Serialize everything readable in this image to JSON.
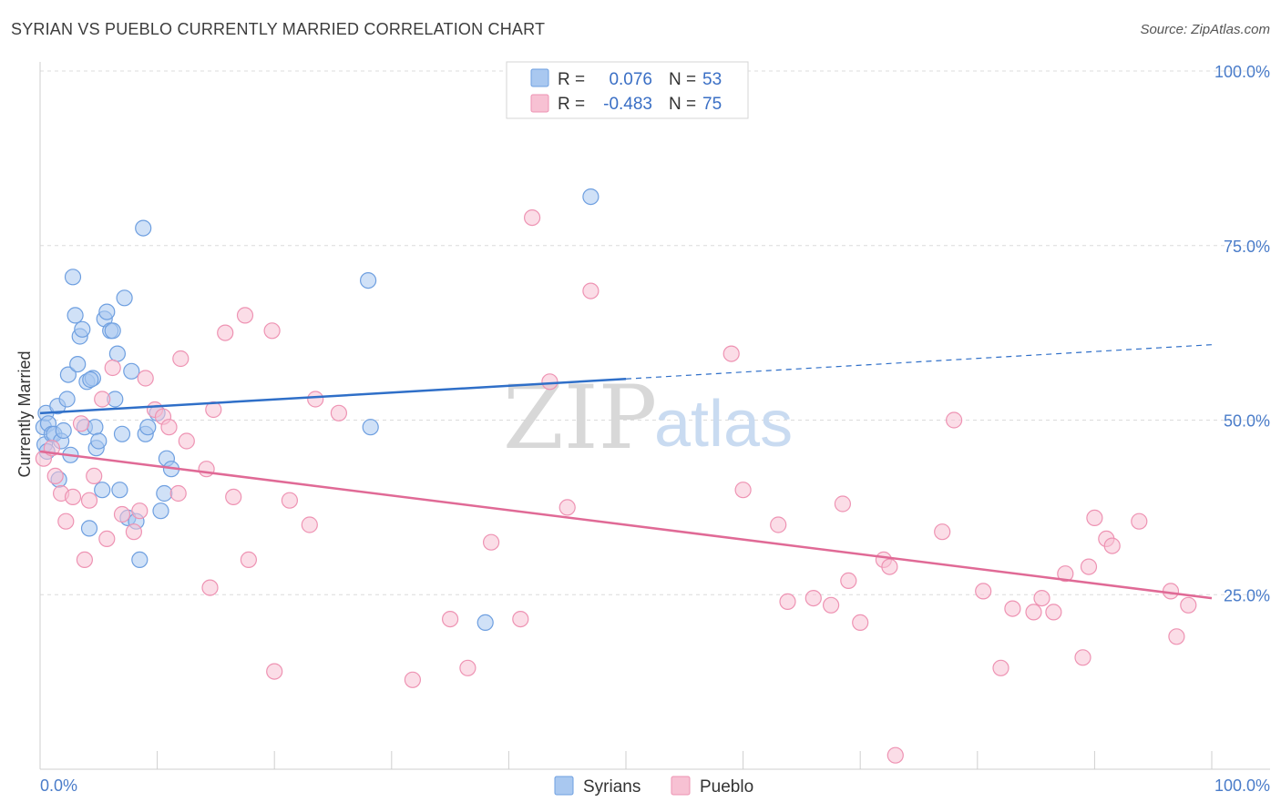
{
  "title": "SYRIAN VS PUEBLO CURRENTLY MARRIED CORRELATION CHART",
  "source": "Source: ZipAtlas.com",
  "watermark": {
    "zip": "ZIP",
    "atlas": "atlas"
  },
  "legend_top": {
    "rows": [
      {
        "r_label": "R =",
        "r_value": "0.076",
        "n_label": "N =",
        "n_value": "53",
        "color": "#a9c8f0",
        "stroke": "#6e9fe0"
      },
      {
        "r_label": "R =",
        "r_value": "-0.483",
        "n_label": "N =",
        "n_value": "75",
        "color": "#f7c1d3",
        "stroke": "#ee93b3"
      }
    ]
  },
  "legend_bottom": [
    {
      "label": "Syrians",
      "color": "#a9c8f0",
      "stroke": "#6e9fe0"
    },
    {
      "label": "Pueblo",
      "color": "#f7c1d3",
      "stroke": "#ee93b3"
    }
  ],
  "chart_data": {
    "type": "scatter",
    "ylabel": "Currently Married",
    "xlim": [
      0,
      100
    ],
    "ylim": [
      0,
      100
    ],
    "x_tick_labels": {
      "min": "0.0%",
      "max": "100.0%"
    },
    "y_ticks": [
      {
        "value": 25,
        "label": "25.0%"
      },
      {
        "value": 50,
        "label": "50.0%"
      },
      {
        "value": 75,
        "label": "75.0%"
      },
      {
        "value": 100,
        "label": "100.0%"
      }
    ],
    "grid": true,
    "series": [
      {
        "name": "Syrians",
        "color": "#a9c8f0",
        "stroke": "#6e9fe0",
        "line_color": "#2f6fc8",
        "trend": {
          "x0": 0,
          "y0": 51.0,
          "x1": 100,
          "y1": 60.8,
          "solid_until": 50
        },
        "points": [
          [
            0.3,
            49.0
          ],
          [
            0.4,
            46.5
          ],
          [
            0.5,
            51.0
          ],
          [
            0.6,
            45.5
          ],
          [
            0.7,
            49.5
          ],
          [
            1.0,
            48.0
          ],
          [
            1.2,
            48.0
          ],
          [
            1.5,
            52.0
          ],
          [
            1.6,
            41.5
          ],
          [
            1.8,
            47.0
          ],
          [
            2.0,
            48.5
          ],
          [
            2.3,
            53.0
          ],
          [
            2.4,
            56.5
          ],
          [
            2.6,
            45.0
          ],
          [
            2.8,
            70.5
          ],
          [
            3.0,
            65.0
          ],
          [
            3.2,
            58.0
          ],
          [
            3.4,
            62.0
          ],
          [
            3.6,
            63.0
          ],
          [
            3.8,
            49.0
          ],
          [
            4.0,
            55.5
          ],
          [
            4.2,
            34.5
          ],
          [
            4.5,
            56.0
          ],
          [
            4.7,
            49.0
          ],
          [
            4.8,
            46.0
          ],
          [
            5.0,
            47.0
          ],
          [
            5.3,
            40.0
          ],
          [
            5.5,
            64.5
          ],
          [
            5.7,
            65.5
          ],
          [
            6.0,
            62.8
          ],
          [
            6.2,
            62.8
          ],
          [
            6.4,
            53.0
          ],
          [
            6.6,
            59.5
          ],
          [
            6.8,
            40.0
          ],
          [
            7.0,
            48.0
          ],
          [
            7.2,
            67.5
          ],
          [
            7.5,
            36.0
          ],
          [
            7.8,
            57.0
          ],
          [
            8.2,
            35.5
          ],
          [
            8.5,
            30.0
          ],
          [
            8.8,
            77.5
          ],
          [
            9.0,
            48.0
          ],
          [
            9.2,
            49.0
          ],
          [
            10.0,
            51.0
          ],
          [
            10.3,
            37.0
          ],
          [
            10.6,
            39.5
          ],
          [
            10.8,
            44.5
          ],
          [
            11.2,
            43.0
          ],
          [
            28.0,
            70.0
          ],
          [
            28.2,
            49.0
          ],
          [
            38.0,
            21.0
          ],
          [
            47.0,
            82.0
          ],
          [
            4.3,
            55.8
          ]
        ]
      },
      {
        "name": "Pueblo",
        "color": "#f7c1d3",
        "stroke": "#ee93b3",
        "line_color": "#e06a96",
        "trend": {
          "x0": 0,
          "y0": 45.5,
          "x1": 100,
          "y1": 24.5,
          "solid_until": 100
        },
        "points": [
          [
            0.3,
            44.5
          ],
          [
            1.0,
            46.0
          ],
          [
            1.3,
            42.0
          ],
          [
            1.8,
            39.5
          ],
          [
            2.2,
            35.5
          ],
          [
            2.8,
            39.0
          ],
          [
            3.5,
            49.5
          ],
          [
            3.8,
            30.0
          ],
          [
            4.2,
            38.5
          ],
          [
            4.6,
            42.0
          ],
          [
            5.3,
            53.0
          ],
          [
            5.7,
            33.0
          ],
          [
            6.2,
            57.5
          ],
          [
            7.0,
            36.5
          ],
          [
            8.0,
            34.0
          ],
          [
            8.5,
            37.0
          ],
          [
            9.0,
            56.0
          ],
          [
            9.8,
            51.5
          ],
          [
            10.5,
            50.5
          ],
          [
            11.0,
            49.0
          ],
          [
            11.8,
            39.5
          ],
          [
            12.0,
            58.8
          ],
          [
            12.5,
            47.0
          ],
          [
            14.2,
            43.0
          ],
          [
            14.5,
            26.0
          ],
          [
            14.8,
            51.5
          ],
          [
            15.8,
            62.5
          ],
          [
            16.5,
            39.0
          ],
          [
            17.5,
            65.0
          ],
          [
            17.8,
            30.0
          ],
          [
            19.8,
            62.8
          ],
          [
            20.0,
            14.0
          ],
          [
            21.3,
            38.5
          ],
          [
            23.0,
            35.0
          ],
          [
            23.5,
            53.0
          ],
          [
            25.5,
            51.0
          ],
          [
            31.8,
            12.8
          ],
          [
            35.0,
            21.5
          ],
          [
            36.5,
            14.5
          ],
          [
            38.5,
            32.5
          ],
          [
            41.0,
            21.5
          ],
          [
            42.0,
            79.0
          ],
          [
            43.5,
            55.5
          ],
          [
            45.0,
            37.5
          ],
          [
            47.0,
            68.5
          ],
          [
            59.0,
            59.5
          ],
          [
            60.0,
            40.0
          ],
          [
            63.0,
            35.0
          ],
          [
            63.8,
            24.0
          ],
          [
            66.0,
            24.5
          ],
          [
            67.5,
            23.5
          ],
          [
            68.5,
            38.0
          ],
          [
            69.0,
            27.0
          ],
          [
            70.0,
            21.0
          ],
          [
            72.0,
            30.0
          ],
          [
            72.5,
            29.0
          ],
          [
            73.0,
            2.0
          ],
          [
            77.0,
            34.0
          ],
          [
            78.0,
            50.0
          ],
          [
            80.5,
            25.5
          ],
          [
            82.0,
            14.5
          ],
          [
            83.0,
            23.0
          ],
          [
            84.8,
            22.5
          ],
          [
            85.5,
            24.5
          ],
          [
            86.5,
            22.5
          ],
          [
            87.5,
            28.0
          ],
          [
            89.0,
            16.0
          ],
          [
            89.5,
            29.0
          ],
          [
            90.0,
            36.0
          ],
          [
            91.0,
            33.0
          ],
          [
            91.5,
            32.0
          ],
          [
            93.8,
            35.5
          ],
          [
            96.5,
            25.5
          ],
          [
            97.0,
            19.0
          ],
          [
            98.0,
            23.5
          ]
        ]
      }
    ]
  }
}
